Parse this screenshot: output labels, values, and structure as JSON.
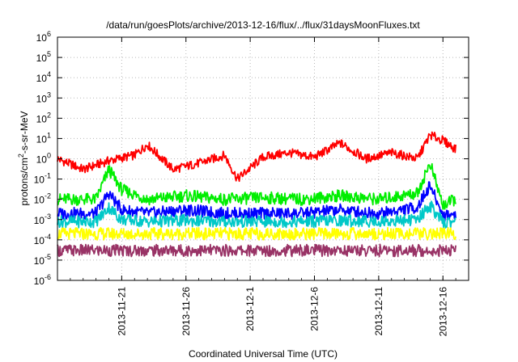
{
  "chart_data": {
    "type": "line",
    "title": "/data/run/goesPlots/archive/2013-12-16/flux/../flux/31daysMoonFluxes.txt",
    "xlabel": "Coordinated Universal Time (UTC)",
    "ylabel": {
      "pre": "protons/cm",
      "sup": "2",
      "post": "-s-sr-MeV"
    },
    "x_range": [
      "2013-11-16",
      "2013-12-18"
    ],
    "x_ticks": [
      "2013-11-21",
      "2013-11-26",
      "2013-12-1",
      "2013-12-6",
      "2013-12-11",
      "2013-12-16"
    ],
    "y_scale": "log",
    "ylim": [
      1e-06,
      1000000.0
    ],
    "y_ticks": [
      {
        "base": "10",
        "exp": "-6",
        "value": 1e-06
      },
      {
        "base": "10",
        "exp": "-5",
        "value": 1e-05
      },
      {
        "base": "10",
        "exp": "-4",
        "value": 0.0001
      },
      {
        "base": "10",
        "exp": "-3",
        "value": 0.001
      },
      {
        "base": "10",
        "exp": "-2",
        "value": 0.01
      },
      {
        "base": "10",
        "exp": "-1",
        "value": 0.1
      },
      {
        "base": "10",
        "exp": "0",
        "value": 1
      },
      {
        "base": "10",
        "exp": "1",
        "value": 10
      },
      {
        "base": "10",
        "exp": "2",
        "value": 100
      },
      {
        "base": "10",
        "exp": "3",
        "value": 1000
      },
      {
        "base": "10",
        "exp": "4",
        "value": 10000
      },
      {
        "base": "10",
        "exp": "5",
        "value": 100000
      },
      {
        "base": "10",
        "exp": "6",
        "value": 1000000
      }
    ],
    "grid": true,
    "legend": "none",
    "series": [
      {
        "color": "#ff0000",
        "x": [
          "2013-11-16",
          "2013-11-18",
          "2013-11-20",
          "2013-11-22",
          "2013-11-23",
          "2013-11-25",
          "2013-11-27",
          "2013-11-29",
          "2013-11-30",
          "2013-12-02",
          "2013-12-04",
          "2013-12-06",
          "2013-12-08",
          "2013-12-10",
          "2013-12-12",
          "2013-12-14",
          "2013-12-15",
          "2013-12-16",
          "2013-12-17"
        ],
        "values": [
          1.0,
          0.3,
          0.8,
          1.5,
          5.0,
          0.3,
          0.6,
          1.5,
          0.1,
          1.2,
          2.0,
          1.2,
          6.0,
          1.0,
          2.0,
          1.0,
          15.0,
          8.0,
          3.0
        ]
      },
      {
        "color": "#00ee00",
        "x": [
          "2013-11-16",
          "2013-11-19",
          "2013-11-20",
          "2013-11-21",
          "2013-11-23",
          "2013-11-26",
          "2013-11-29",
          "2013-12-02",
          "2013-12-05",
          "2013-12-08",
          "2013-12-11",
          "2013-12-14",
          "2013-12-15",
          "2013-12-16",
          "2013-12-17"
        ],
        "values": [
          0.01,
          0.01,
          0.3,
          0.03,
          0.01,
          0.015,
          0.01,
          0.012,
          0.01,
          0.015,
          0.01,
          0.02,
          0.6,
          0.005,
          0.01
        ]
      },
      {
        "color": "#0000ff",
        "x": [
          "2013-11-16",
          "2013-11-19",
          "2013-11-20",
          "2013-11-21",
          "2013-11-23",
          "2013-11-26",
          "2013-11-29",
          "2013-12-02",
          "2013-12-05",
          "2013-12-08",
          "2013-12-11",
          "2013-12-14",
          "2013-12-15",
          "2013-12-16",
          "2013-12-17"
        ],
        "values": [
          0.002,
          0.002,
          0.02,
          0.003,
          0.002,
          0.003,
          0.002,
          0.002,
          0.002,
          0.003,
          0.002,
          0.004,
          0.05,
          0.0015,
          0.002
        ]
      },
      {
        "color": "#00c8c8",
        "x": [
          "2013-11-16",
          "2013-11-19",
          "2013-11-20",
          "2013-11-21",
          "2013-11-23",
          "2013-11-26",
          "2013-11-29",
          "2013-12-02",
          "2013-12-05",
          "2013-12-08",
          "2013-12-11",
          "2013-12-14",
          "2013-12-15",
          "2013-12-16",
          "2013-12-17"
        ],
        "values": [
          0.0008,
          0.0008,
          0.004,
          0.001,
          0.0008,
          0.0009,
          0.0008,
          0.0008,
          0.0008,
          0.0009,
          0.0008,
          0.001,
          0.005,
          0.0007,
          0.0008
        ]
      },
      {
        "color": "#ffff00",
        "x": [
          "2013-11-16",
          "2013-11-23",
          "2013-11-30",
          "2013-12-07",
          "2013-12-14",
          "2013-12-17"
        ],
        "values": [
          0.0002,
          0.0002,
          0.0002,
          0.0002,
          0.0002,
          0.0002
        ]
      },
      {
        "color": "#993366",
        "x": [
          "2013-11-16",
          "2013-11-23",
          "2013-11-30",
          "2013-12-07",
          "2013-12-14",
          "2013-12-17"
        ],
        "values": [
          3e-05,
          3e-05,
          3e-05,
          3e-05,
          3e-05,
          3e-05
        ]
      }
    ]
  }
}
